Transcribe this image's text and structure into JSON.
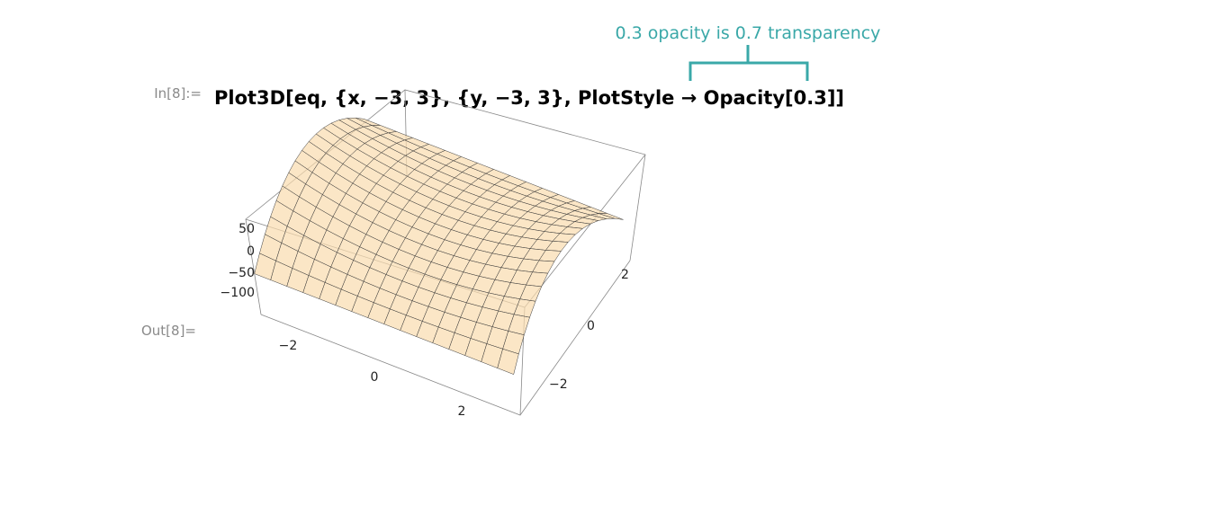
{
  "input_label": "In[8]:=",
  "code": "Plot3D[eq, {x, −3, 3}, {y, −3, 3}, PlotStyle → Opacity[0.3]]",
  "annotation": "0.3 opacity is 0.7 transparency",
  "output_label": "Out[8]=",
  "plot": {
    "z_ticks": [
      "50",
      "0",
      "−50",
      "−100"
    ],
    "x_ticks": [
      "−2",
      "0",
      "2"
    ],
    "y_ticks": [
      "−2",
      "0",
      "2"
    ]
  }
}
